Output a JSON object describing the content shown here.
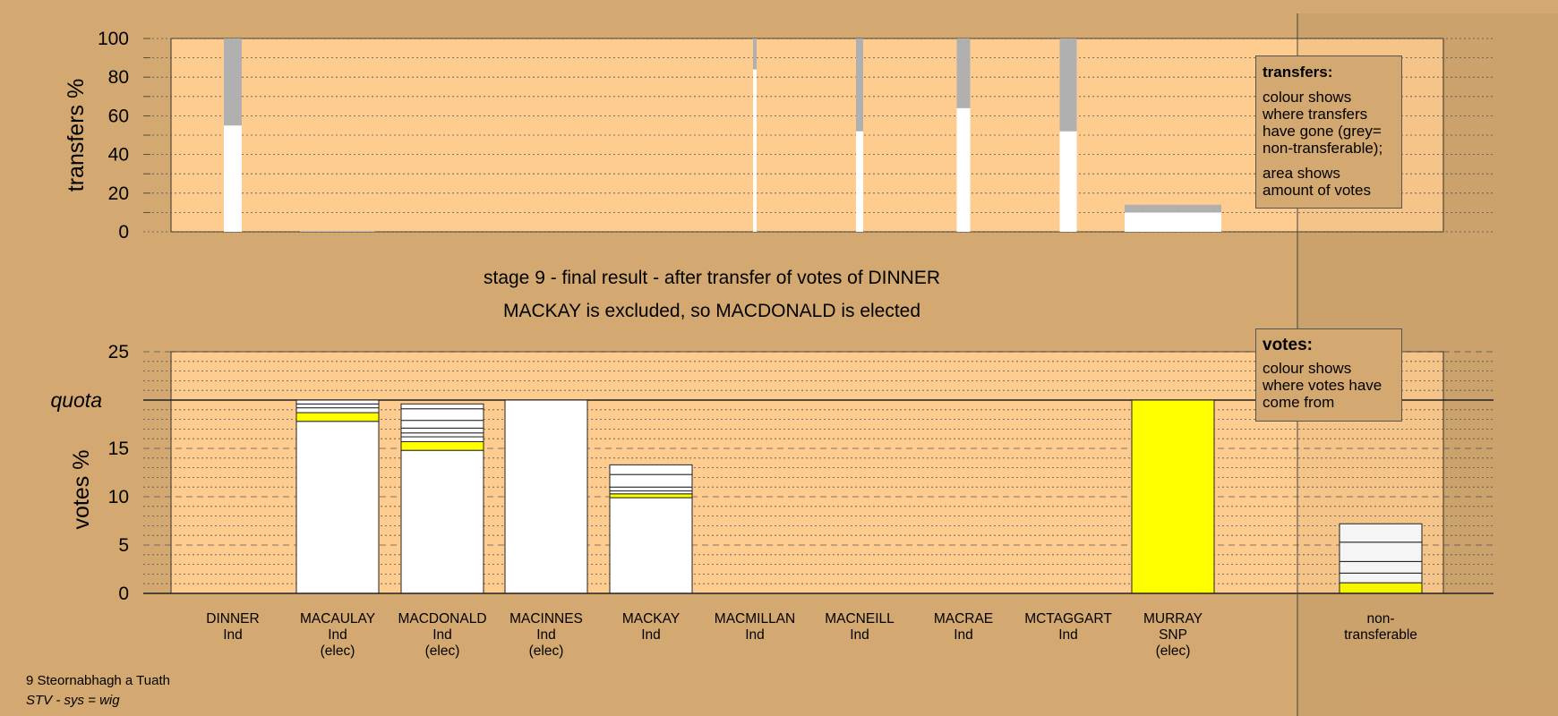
{
  "titles": {
    "line1": "stage 9 - final result - after transfer of votes of DINNER",
    "line2": "MACKAY is excluded, so MACDONALD is elected"
  },
  "legend_transfers": {
    "heading": "transfers:",
    "text1": "colour shows where transfers have gone (grey= non-transferable);",
    "text2": "area shows amount of votes"
  },
  "legend_votes": {
    "heading": "votes:",
    "text1": "colour shows where votes have come from"
  },
  "footer": {
    "line1": "9 Steornabhagh a Tuath",
    "line2": "STV - sys = wig"
  },
  "colors": {
    "background": "#D4A871",
    "plot_area": "#FFCC8F",
    "transferred": "#FFFFFF",
    "non_transferable": "#B0B0B0",
    "snp": "#FFFF00"
  },
  "chart_data": [
    {
      "type": "bar",
      "ylabel": "transfers %",
      "yticks": [
        0,
        20,
        40,
        60,
        80,
        100
      ],
      "ylim": [
        0,
        100
      ],
      "categories": [
        "DINNER",
        "MACAULAY",
        "MACDONALD",
        "MACINNES",
        "MACKAY",
        "MACMILLAN",
        "MACNEILL",
        "MACRAE",
        "MCTAGGART",
        "MURRAY",
        "non-transferable"
      ],
      "series": [
        {
          "key": "transferred",
          "values": [
            55,
            0,
            0,
            0,
            0,
            84,
            52,
            64,
            52,
            10,
            null
          ]
        },
        {
          "key": "non_transferable",
          "values": [
            45,
            0,
            0,
            0,
            0,
            16,
            48,
            36,
            48,
            4,
            null
          ]
        }
      ]
    },
    {
      "type": "bar",
      "ylabel": "votes %",
      "yticks": [
        0,
        5,
        10,
        15,
        20,
        25
      ],
      "ylim": [
        0,
        25
      ],
      "quota": 20,
      "quota_label": "quota",
      "categories": [
        {
          "name": "DINNER",
          "party": "Ind",
          "status": ""
        },
        {
          "name": "MACAULAY",
          "party": "Ind",
          "status": "(elec)"
        },
        {
          "name": "MACDONALD",
          "party": "Ind",
          "status": "(elec)"
        },
        {
          "name": "MACINNES",
          "party": "Ind",
          "status": "(elec)"
        },
        {
          "name": "MACKAY",
          "party": "Ind",
          "status": ""
        },
        {
          "name": "MACMILLAN",
          "party": "Ind",
          "status": ""
        },
        {
          "name": "MACNEILL",
          "party": "Ind",
          "status": ""
        },
        {
          "name": "MACRAE",
          "party": "Ind",
          "status": ""
        },
        {
          "name": "MCTAGGART",
          "party": "Ind",
          "status": ""
        },
        {
          "name": "MURRAY",
          "party": "SNP",
          "status": "(elec)"
        },
        {
          "name": "non-",
          "party": "transferable",
          "status": ""
        }
      ],
      "segments": [
        [],
        [
          [
            "white",
            17.8
          ],
          [
            "yellow",
            0.9
          ],
          [
            "white",
            0.5
          ],
          [
            "white",
            0.4
          ],
          [
            "white",
            0.4
          ]
        ],
        [
          [
            "white",
            14.8
          ],
          [
            "yellow",
            0.9
          ],
          [
            "white",
            0.5
          ],
          [
            "white",
            0.4
          ],
          [
            "white",
            0.5
          ],
          [
            "white",
            0.8
          ],
          [
            "white",
            1.2
          ],
          [
            "white",
            0.5
          ]
        ],
        [
          [
            "white",
            20.0
          ]
        ],
        [
          [
            "white",
            9.9
          ],
          [
            "yellow",
            0.4
          ],
          [
            "white",
            0.3
          ],
          [
            "white",
            0.4
          ],
          [
            "white",
            1.3
          ],
          [
            "white",
            1.0
          ]
        ],
        [],
        [],
        [],
        [],
        [
          [
            "yellow",
            20.0
          ]
        ],
        [
          [
            "yellow",
            1.1
          ],
          [
            "white",
            1.0
          ],
          [
            "white",
            1.2
          ],
          [
            "white",
            2.0
          ],
          [
            "white",
            1.9
          ]
        ]
      ]
    }
  ]
}
